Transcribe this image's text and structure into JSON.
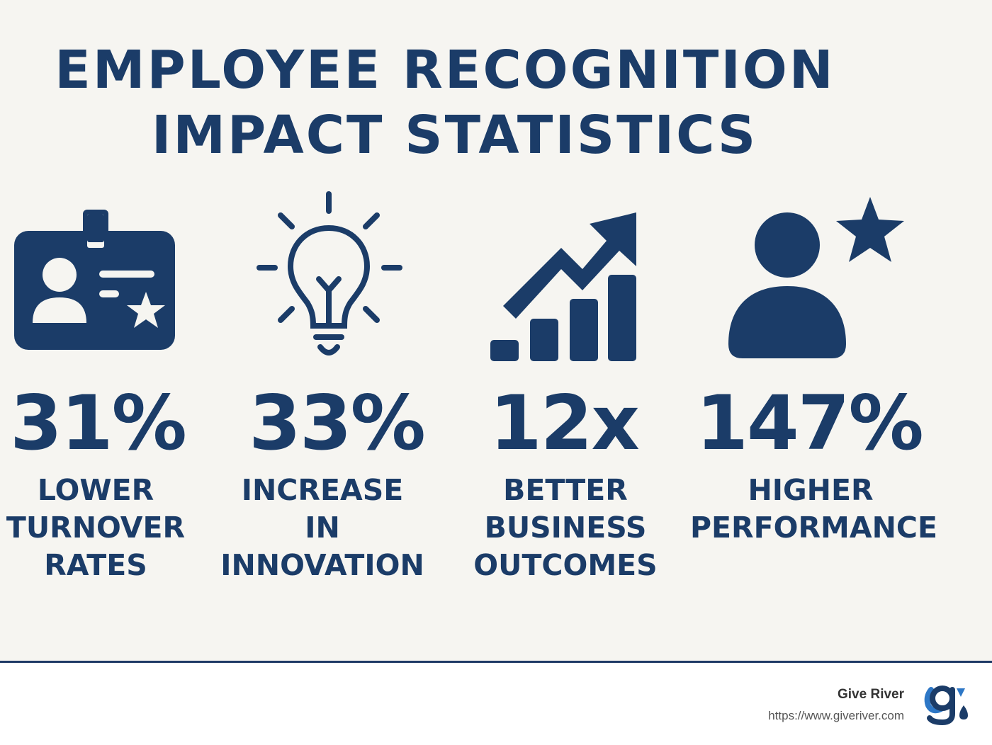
{
  "title": {
    "line1": "EMPLOYEE RECOGNITION",
    "line2": "IMPACT STATISTICS"
  },
  "stats": [
    {
      "value": "31%",
      "label": [
        "LOWER",
        "TURNOVER",
        "RATES"
      ],
      "icon": "id-badge-star-icon"
    },
    {
      "value": "33%",
      "label": [
        "INCREASE",
        "IN",
        "INNOVATION"
      ],
      "icon": "lightbulb-icon"
    },
    {
      "value": "12x",
      "label": [
        "BETTER",
        "BUSINESS",
        "OUTCOMES"
      ],
      "icon": "growth-chart-icon"
    },
    {
      "value": "147%",
      "label": [
        "HIGHER",
        "PERFORMANCE"
      ],
      "icon": "person-star-icon"
    }
  ],
  "footer": {
    "brand_name": "Give River",
    "brand_url": "https://www.giveriver.com",
    "logo_icon": "give-river-logo"
  },
  "colors": {
    "primary": "#1b3c68",
    "background": "#f6f5f1",
    "footer_background": "#ffffff"
  }
}
